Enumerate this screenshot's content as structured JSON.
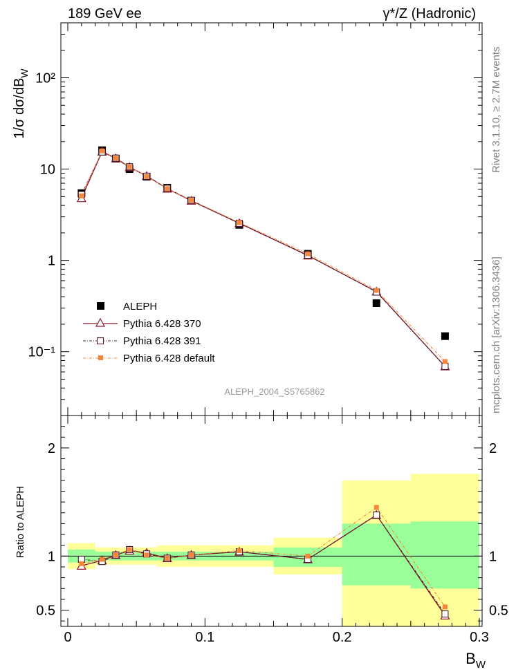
{
  "header": {
    "left_title": "189 GeV ee",
    "right_title": "γ*/Z (Hadronic)"
  },
  "side_labels": {
    "rivet": "Rivet 3.1.10, ≥ 2.7M events",
    "mcplots": "mcplots.cern.ch [arXiv:1306.3436]"
  },
  "colors": {
    "data": "#000000",
    "pythia_370": "#8b1a2b",
    "pythia_391": "#4a1a33",
    "pythia_default": "#f4873a",
    "band_inner": "#99ff99",
    "band_outer": "#ffff99"
  },
  "chart_data": [
    {
      "type": "line",
      "title": "",
      "analysis_label": "ALEPH_2004_S5765862",
      "ylabel": "1/σ  dσ/dB_W",
      "xlabel": "B_W",
      "yscale": "log",
      "xlim": [
        0,
        0.3
      ],
      "ylim": [
        0.02,
        400
      ],
      "ytick_labels": [
        "10⁻¹",
        "1",
        "10",
        "10²"
      ],
      "ytick_values": [
        0.1,
        1,
        10,
        100
      ],
      "legend_position": "bottom-left",
      "x": [
        0.01,
        0.025,
        0.035,
        0.045,
        0.0575,
        0.0725,
        0.09,
        0.125,
        0.175,
        0.225,
        0.275
      ],
      "series": [
        {
          "name": "ALEPH",
          "marker": "filled-square",
          "values": [
            5.45,
            16.1,
            13.0,
            10.0,
            8.25,
            6.25,
            4.5,
            2.45,
            1.18,
            0.34,
            0.148
          ]
        },
        {
          "name": "Pythia 6.428 370",
          "marker": "open-triangle",
          "line": "solid",
          "values": [
            4.8,
            15.5,
            13.1,
            10.5,
            8.4,
            6.1,
            4.5,
            2.55,
            1.13,
            0.455,
            0.069
          ]
        },
        {
          "name": "Pythia 6.428 391",
          "marker": "open-square",
          "line": "dash-dot",
          "values": [
            5.25,
            15.4,
            13.2,
            10.6,
            8.35,
            6.15,
            4.55,
            2.55,
            1.14,
            0.45,
            0.069
          ]
        },
        {
          "name": "Pythia 6.428 default",
          "marker": "filled-square-small",
          "line": "dash-dot",
          "values": [
            5.1,
            15.8,
            13.2,
            10.6,
            8.3,
            6.1,
            4.55,
            2.6,
            1.18,
            0.47,
            0.078
          ]
        }
      ]
    },
    {
      "type": "line",
      "title": "",
      "ylabel": "Ratio to ALEPH",
      "xlabel": "B_W",
      "xlim": [
        0,
        0.3
      ],
      "ylim": [
        0.35,
        2.3
      ],
      "xtick_labels": [
        "0",
        "0.1",
        "0.2",
        "0.3"
      ],
      "xtick_values": [
        0,
        0.1,
        0.2,
        0.3
      ],
      "ytick_labels": [
        "0.5",
        "1",
        "2"
      ],
      "ytick_values": [
        0.5,
        1,
        2
      ],
      "reference_line": 1,
      "x": [
        0.01,
        0.025,
        0.035,
        0.045,
        0.0575,
        0.0725,
        0.09,
        0.125,
        0.175,
        0.225,
        0.275
      ],
      "uncertainty_bands": {
        "bin_edges": [
          0,
          0.02,
          0.03,
          0.04,
          0.05,
          0.065,
          0.08,
          0.1,
          0.15,
          0.2,
          0.25,
          0.3
        ],
        "inner_low": [
          0.94,
          0.96,
          0.96,
          0.96,
          0.96,
          0.96,
          0.96,
          0.96,
          0.9,
          0.73,
          0.7
        ],
        "inner_high": [
          1.06,
          1.04,
          1.04,
          1.04,
          1.04,
          1.04,
          1.04,
          1.04,
          1.08,
          1.3,
          1.32
        ],
        "outer_low": [
          0.88,
          0.92,
          0.92,
          0.92,
          0.92,
          0.9,
          0.9,
          0.9,
          0.83,
          0.35,
          0.35
        ],
        "outer_high": [
          1.12,
          1.08,
          1.08,
          1.08,
          1.08,
          1.1,
          1.1,
          1.1,
          1.17,
          1.7,
          1.76
        ]
      },
      "series": [
        {
          "name": "Pythia 6.428 370",
          "values": [
            0.91,
            0.96,
            1.01,
            1.05,
            1.03,
            0.98,
            1.01,
            1.04,
            0.97,
            1.38,
            0.45
          ]
        },
        {
          "name": "Pythia 6.428 391",
          "values": [
            0.97,
            0.95,
            1.01,
            1.06,
            1.02,
            0.98,
            1.01,
            1.04,
            0.97,
            1.38,
            0.465
          ]
        },
        {
          "name": "Pythia 6.428 default",
          "values": [
            0.93,
            0.97,
            1.01,
            1.06,
            1.01,
            0.98,
            1.01,
            1.05,
            1.0,
            1.45,
            0.53
          ]
        }
      ]
    }
  ]
}
